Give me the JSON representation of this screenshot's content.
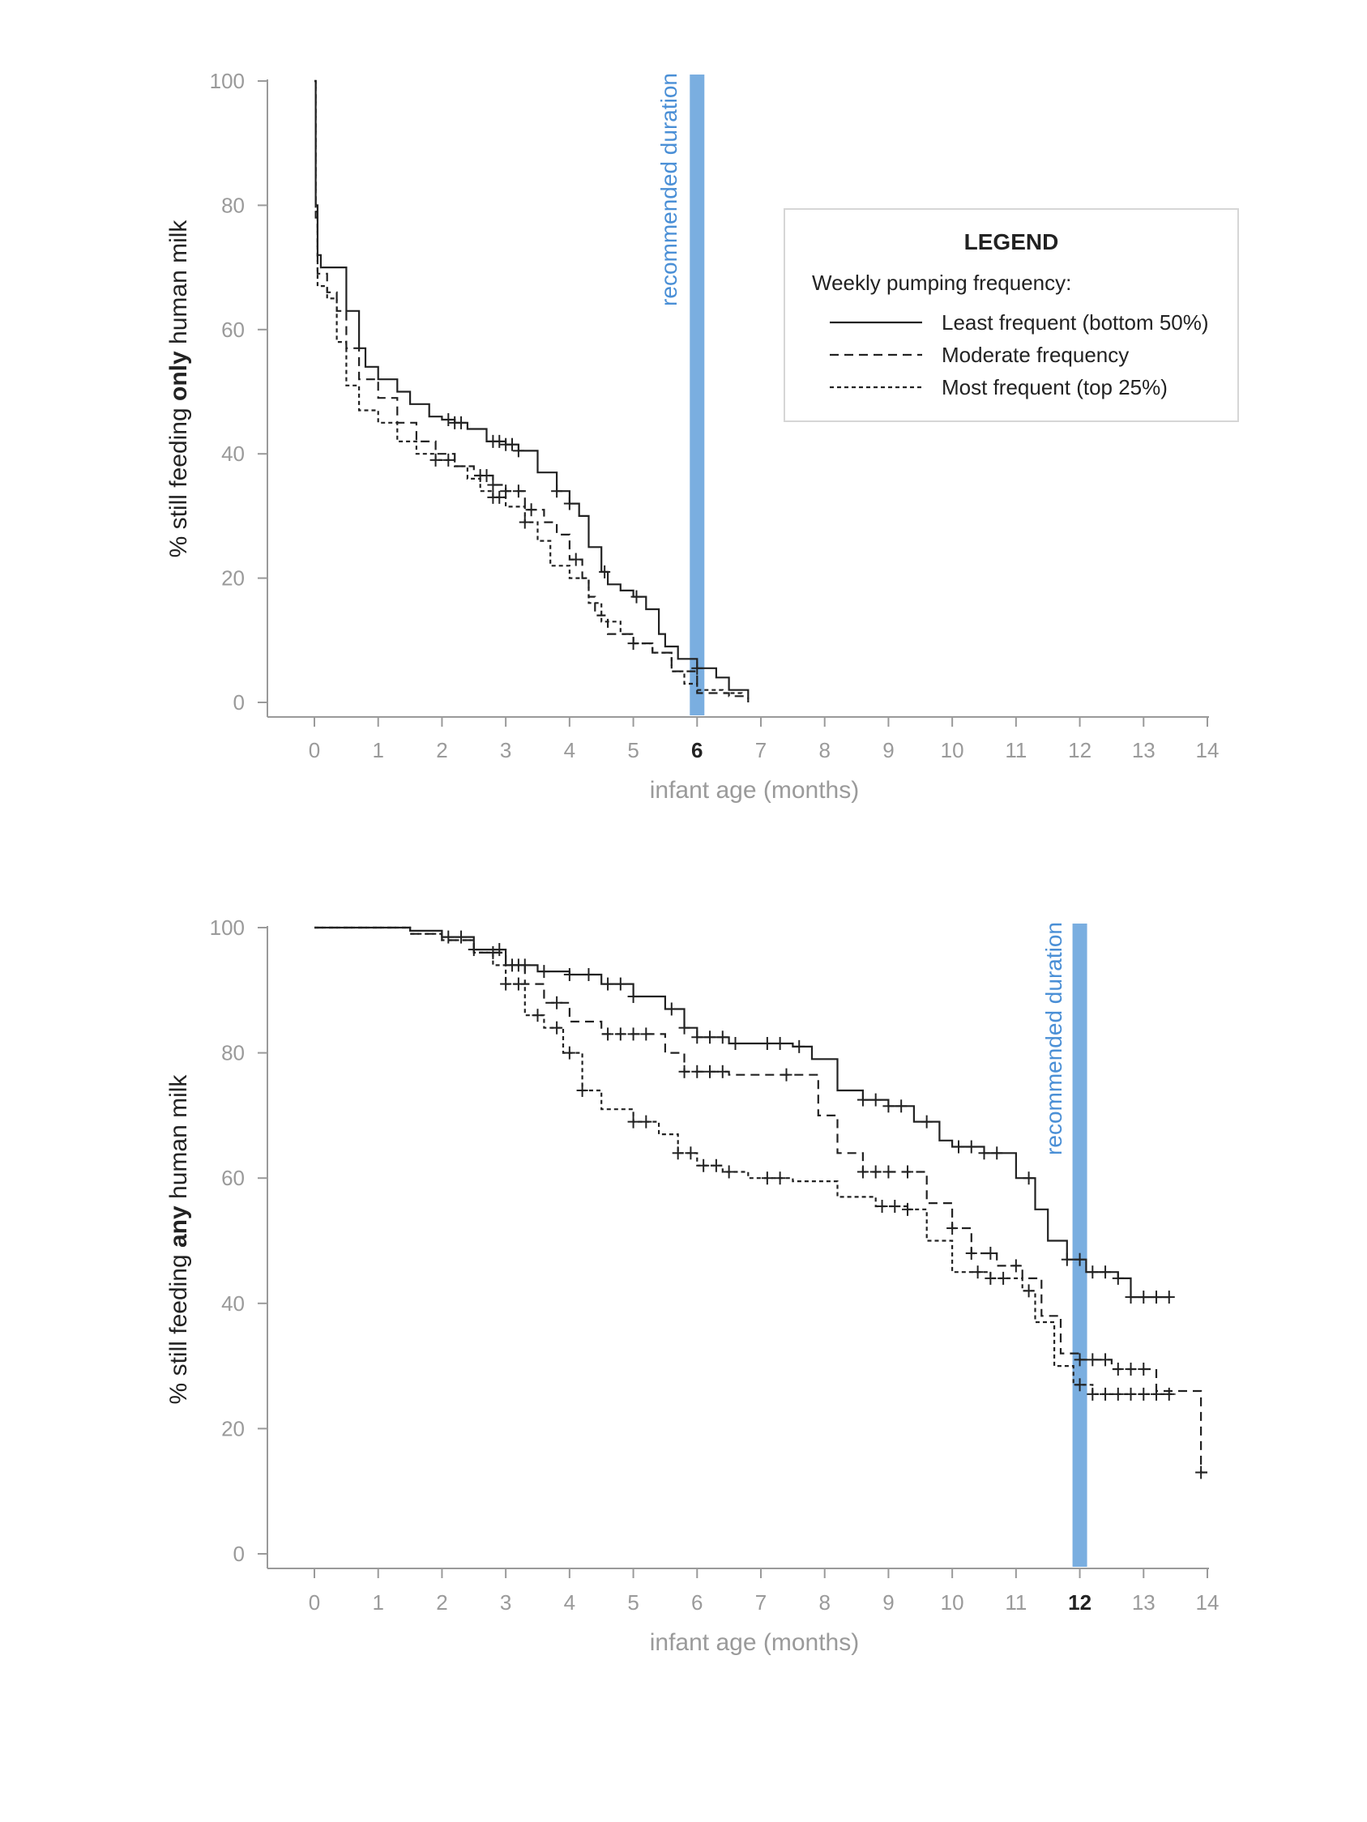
{
  "chart_data": [
    {
      "type": "line",
      "subtype": "kaplan-meier",
      "ylabel_parts": [
        "% still feeding ",
        "only",
        " human milk"
      ],
      "xlabel": "infant age (months)",
      "xlim": [
        0,
        14
      ],
      "ylim": [
        0,
        100
      ],
      "x_ticks": [
        0,
        1,
        2,
        3,
        4,
        5,
        6,
        7,
        8,
        9,
        10,
        11,
        12,
        13,
        14
      ],
      "y_ticks": [
        0,
        20,
        40,
        60,
        80,
        100
      ],
      "highlight_tick": 6,
      "reference_line": {
        "x": 6,
        "label": "recommended duration",
        "color": "#7aaee0"
      },
      "legend": {
        "title": "LEGEND",
        "subtitle": "Weekly pumping frequency:",
        "placement": "top-right",
        "entries": [
          {
            "label": "Least frequent (bottom 50%)",
            "style": "solid"
          },
          {
            "label": "Moderate frequency",
            "style": "dashed"
          },
          {
            "label": "Most frequent (top 25%)",
            "style": "dotted"
          }
        ]
      },
      "series": [
        {
          "style": "solid",
          "points": [
            [
              0,
              100
            ],
            [
              0.02,
              80
            ],
            [
              0.05,
              72
            ],
            [
              0.1,
              70
            ],
            [
              0.3,
              70
            ],
            [
              0.5,
              63
            ],
            [
              0.7,
              57
            ],
            [
              0.8,
              54
            ],
            [
              1,
              52
            ],
            [
              1.3,
              50
            ],
            [
              1.5,
              48
            ],
            [
              1.8,
              46
            ],
            [
              2,
              45.5
            ],
            [
              2.2,
              45
            ],
            [
              2.4,
              44
            ],
            [
              2.7,
              42
            ],
            [
              3,
              41.5
            ],
            [
              3.2,
              40.5
            ],
            [
              3.5,
              37
            ],
            [
              3.8,
              34
            ],
            [
              4,
              32
            ],
            [
              4.15,
              30
            ],
            [
              4.3,
              25
            ],
            [
              4.5,
              21
            ],
            [
              4.6,
              19
            ],
            [
              4.8,
              18
            ],
            [
              5,
              17
            ],
            [
              5.2,
              15
            ],
            [
              5.4,
              11
            ],
            [
              5.5,
              9
            ],
            [
              5.7,
              7
            ],
            [
              6,
              5.5
            ],
            [
              6.3,
              4
            ],
            [
              6.5,
              2
            ],
            [
              6.8,
              0
            ]
          ],
          "censor_x": [
            2.1,
            2.2,
            2.3,
            2.8,
            2.9,
            3.0,
            3.1,
            3.2,
            3.8,
            4.0,
            4.55,
            5.05,
            6.0
          ]
        },
        {
          "style": "dashed",
          "points": [
            [
              0,
              100
            ],
            [
              0.02,
              78
            ],
            [
              0.05,
              69
            ],
            [
              0.2,
              66
            ],
            [
              0.35,
              63
            ],
            [
              0.5,
              57
            ],
            [
              0.7,
              52
            ],
            [
              1,
              49
            ],
            [
              1.3,
              45
            ],
            [
              1.6,
              42
            ],
            [
              1.9,
              40
            ],
            [
              2.2,
              38
            ],
            [
              2.5,
              36.5
            ],
            [
              2.8,
              35
            ],
            [
              3,
              34
            ],
            [
              3.3,
              31
            ],
            [
              3.6,
              29
            ],
            [
              3.8,
              27
            ],
            [
              4,
              23
            ],
            [
              4.2,
              20
            ],
            [
              4.3,
              17
            ],
            [
              4.4,
              14
            ],
            [
              4.6,
              11
            ],
            [
              5,
              9.5
            ],
            [
              5.3,
              8
            ],
            [
              5.6,
              5
            ],
            [
              6,
              1.5
            ],
            [
              6.5,
              1
            ],
            [
              6.8,
              0.5
            ]
          ],
          "censor_x": [
            2.6,
            2.7,
            2.8,
            3.0,
            3.2,
            3.4,
            4.1
          ]
        },
        {
          "style": "dotted",
          "points": [
            [
              0,
              100
            ],
            [
              0.02,
              79
            ],
            [
              0.05,
              67
            ],
            [
              0.2,
              65
            ],
            [
              0.35,
              58
            ],
            [
              0.5,
              51
            ],
            [
              0.7,
              47
            ],
            [
              1,
              45
            ],
            [
              1.3,
              42
            ],
            [
              1.6,
              40
            ],
            [
              1.9,
              39
            ],
            [
              2.2,
              38
            ],
            [
              2.4,
              36
            ],
            [
              2.6,
              34
            ],
            [
              2.8,
              33
            ],
            [
              3,
              31.5
            ],
            [
              3.3,
              29
            ],
            [
              3.5,
              26
            ],
            [
              3.7,
              22
            ],
            [
              4,
              20
            ],
            [
              4.3,
              16
            ],
            [
              4.5,
              13
            ],
            [
              4.8,
              11
            ],
            [
              5,
              9.5
            ],
            [
              5.3,
              8
            ],
            [
              5.6,
              5
            ],
            [
              5.8,
              3
            ],
            [
              6,
              2
            ],
            [
              6.4,
              1.5
            ],
            [
              6.7,
              1
            ]
          ],
          "censor_x": [
            1.9,
            2.1,
            2.8,
            2.9,
            3.3,
            5.0
          ]
        }
      ]
    },
    {
      "type": "line",
      "subtype": "kaplan-meier",
      "ylabel_parts": [
        "% still feeding ",
        "any",
        " human milk"
      ],
      "xlabel": "infant age (months)",
      "xlim": [
        0,
        14
      ],
      "ylim": [
        0,
        100
      ],
      "x_ticks": [
        0,
        1,
        2,
        3,
        4,
        5,
        6,
        7,
        8,
        9,
        10,
        11,
        12,
        13,
        14
      ],
      "y_ticks": [
        0,
        20,
        40,
        60,
        80,
        100
      ],
      "highlight_tick": 12,
      "reference_line": {
        "x": 12,
        "label": "recommended duration",
        "color": "#7aaee0"
      },
      "series": [
        {
          "style": "solid",
          "points": [
            [
              0,
              100
            ],
            [
              0.8,
              100
            ],
            [
              1.5,
              99.5
            ],
            [
              2,
              98.5
            ],
            [
              2.5,
              96.5
            ],
            [
              3,
              94
            ],
            [
              3.5,
              93
            ],
            [
              4,
              92.5
            ],
            [
              4.5,
              91
            ],
            [
              5,
              89
            ],
            [
              5.5,
              87
            ],
            [
              5.8,
              84
            ],
            [
              6,
              82.5
            ],
            [
              6.5,
              81.5
            ],
            [
              7.5,
              81
            ],
            [
              7.8,
              79
            ],
            [
              8.2,
              74
            ],
            [
              8.6,
              72.5
            ],
            [
              9,
              71.5
            ],
            [
              9.4,
              69
            ],
            [
              9.8,
              66
            ],
            [
              10,
              65
            ],
            [
              10.5,
              64
            ],
            [
              11,
              60
            ],
            [
              11.3,
              55
            ],
            [
              11.5,
              50
            ],
            [
              11.8,
              47
            ],
            [
              12.1,
              45
            ],
            [
              12.6,
              44
            ],
            [
              12.8,
              41
            ],
            [
              13.4,
              41
            ]
          ],
          "censor_x": [
            2.1,
            2.3,
            2.5,
            2.9,
            3.1,
            3.3,
            3.6,
            4.0,
            4.3,
            4.6,
            4.8,
            5.0,
            5.6,
            5.8,
            6.0,
            6.2,
            6.4,
            6.6,
            7.1,
            7.3,
            7.6,
            8.6,
            8.8,
            9.0,
            9.2,
            9.6,
            10.1,
            10.3,
            10.5,
            10.7,
            11.2,
            11.8,
            12.0,
            12.2,
            12.4,
            12.6,
            12.8,
            13.0,
            13.2,
            13.4
          ]
        },
        {
          "style": "dashed",
          "points": [
            [
              0,
              100
            ],
            [
              1,
              100
            ],
            [
              1.5,
              99
            ],
            [
              2,
              98
            ],
            [
              2.5,
              96
            ],
            [
              3,
              94
            ],
            [
              3.3,
              91
            ],
            [
              3.6,
              88
            ],
            [
              4,
              85
            ],
            [
              4.5,
              83
            ],
            [
              5.2,
              83
            ],
            [
              5.5,
              80
            ],
            [
              5.8,
              77
            ],
            [
              6.5,
              76.5
            ],
            [
              7.7,
              76.5
            ],
            [
              7.9,
              70
            ],
            [
              8.2,
              64
            ],
            [
              8.6,
              61
            ],
            [
              9.3,
              61
            ],
            [
              9.6,
              56
            ],
            [
              10,
              52
            ],
            [
              10.3,
              48
            ],
            [
              10.7,
              46
            ],
            [
              11.1,
              44
            ],
            [
              11.4,
              38
            ],
            [
              11.7,
              32
            ],
            [
              12,
              31
            ],
            [
              12.5,
              29.5
            ],
            [
              13,
              29.5
            ],
            [
              13.2,
              26
            ],
            [
              13.8,
              26
            ],
            [
              13.9,
              13
            ],
            [
              14,
              13
            ]
          ],
          "censor_x": [
            2.8,
            3.2,
            3.8,
            4.6,
            4.8,
            5.0,
            5.2,
            5.8,
            6.0,
            6.2,
            6.4,
            7.4,
            8.6,
            8.8,
            9.0,
            9.3,
            10.0,
            10.3,
            10.6,
            11.0,
            12.0,
            12.2,
            12.4,
            12.6,
            12.8,
            13.0,
            13.9
          ]
        },
        {
          "style": "dotted",
          "points": [
            [
              0,
              100
            ],
            [
              1,
              100
            ],
            [
              1.5,
              99
            ],
            [
              2,
              98
            ],
            [
              2.5,
              96
            ],
            [
              2.8,
              94
            ],
            [
              3,
              91
            ],
            [
              3.3,
              86
            ],
            [
              3.6,
              84
            ],
            [
              3.9,
              80
            ],
            [
              4.2,
              74
            ],
            [
              4.5,
              71
            ],
            [
              5,
              69
            ],
            [
              5.4,
              67
            ],
            [
              5.7,
              64
            ],
            [
              6,
              62
            ],
            [
              6.4,
              61
            ],
            [
              6.8,
              60
            ],
            [
              7.5,
              59.5
            ],
            [
              8.2,
              57
            ],
            [
              8.8,
              55.5
            ],
            [
              9.3,
              55
            ],
            [
              9.6,
              50
            ],
            [
              10,
              45
            ],
            [
              10.6,
              44
            ],
            [
              11.1,
              42
            ],
            [
              11.3,
              37
            ],
            [
              11.6,
              30
            ],
            [
              11.9,
              27
            ],
            [
              12.2,
              25.5
            ],
            [
              13.5,
              25.5
            ]
          ],
          "censor_x": [
            3.0,
            3.2,
            3.5,
            3.8,
            4.0,
            4.2,
            5.0,
            5.2,
            5.7,
            5.9,
            6.1,
            6.3,
            6.5,
            7.1,
            7.3,
            8.9,
            9.1,
            9.3,
            10.4,
            10.6,
            10.8,
            11.2,
            12.0,
            12.2,
            12.4,
            12.6,
            12.8,
            13.0,
            13.2,
            13.4
          ]
        }
      ]
    }
  ]
}
